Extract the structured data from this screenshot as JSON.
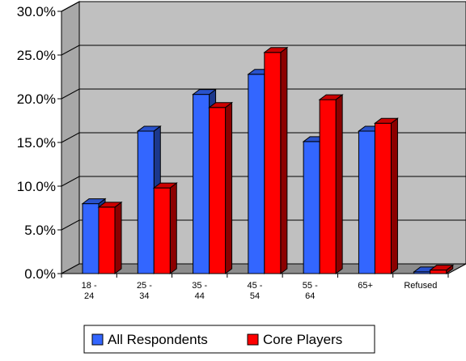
{
  "chart_data": {
    "type": "bar",
    "style": "3d-clustered-column",
    "categories": [
      [
        "18 -",
        "24"
      ],
      [
        "25 -",
        "34"
      ],
      [
        "35 -",
        "44"
      ],
      [
        "45 -",
        "54"
      ],
      [
        "55 -",
        "64"
      ],
      [
        "65+"
      ],
      [
        "Refused"
      ]
    ],
    "series": [
      {
        "name": "All Respondents",
        "values": [
          8.0,
          16.3,
          20.5,
          22.8,
          15.1,
          16.3,
          0.2
        ],
        "color": "#3366ff"
      },
      {
        "name": "Core Players",
        "values": [
          7.6,
          9.8,
          19.0,
          25.3,
          19.9,
          17.2,
          0.4
        ],
        "color": "#ff0000"
      }
    ],
    "yticks": [
      "0.0%",
      "5.0%",
      "10.0%",
      "15.0%",
      "20.0%",
      "25.0%",
      "30.0%"
    ],
    "ylim": [
      0,
      30
    ],
    "grid": true,
    "wall_color": "#c0c0c0",
    "legend_position": "bottom"
  }
}
